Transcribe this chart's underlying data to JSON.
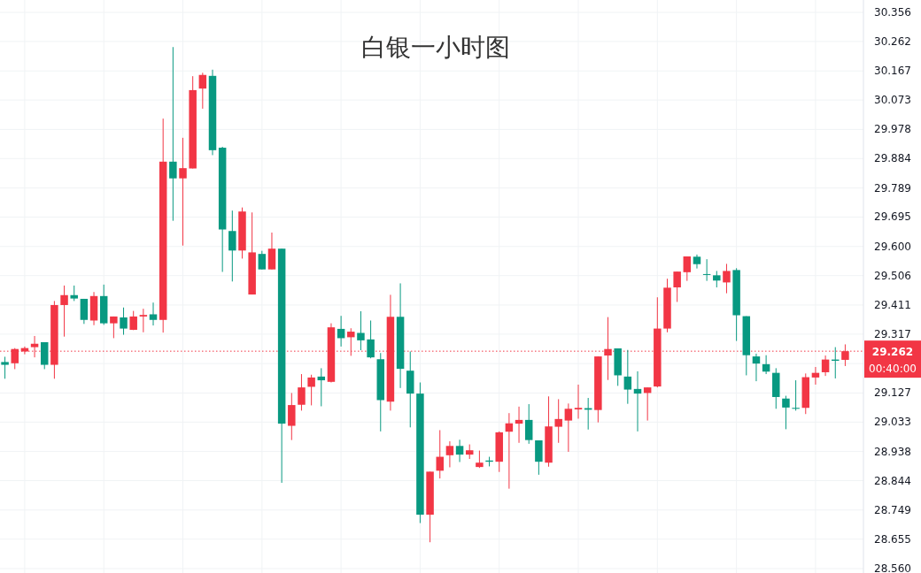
{
  "chart_data": {
    "type": "candlestick",
    "title": "白银一小时图",
    "categories": [
      null,
      null,
      null,
      null,
      null,
      null,
      null,
      null,
      null,
      null,
      null,
      null,
      null,
      null,
      null,
      null,
      null,
      null,
      null,
      null,
      null,
      null,
      null,
      null,
      null,
      null,
      null,
      null,
      null,
      null,
      null,
      null,
      null,
      null,
      null,
      null,
      null,
      null,
      null,
      null,
      null,
      null,
      null,
      null,
      null,
      null,
      null,
      null,
      null,
      null,
      null,
      null,
      null,
      null,
      null,
      null,
      null,
      null,
      null,
      null,
      null,
      null,
      null,
      null,
      null,
      null,
      null,
      null,
      null,
      null,
      null,
      null,
      null,
      null,
      null,
      null,
      null,
      null,
      null,
      null,
      null,
      null,
      null,
      null,
      null,
      null
    ],
    "ohlc": [
      [
        29.227,
        29.244,
        29.173,
        29.218
      ],
      [
        29.223,
        29.272,
        29.204,
        29.269
      ],
      [
        29.261,
        29.277,
        29.252,
        29.272
      ],
      [
        29.275,
        29.311,
        29.242,
        29.286
      ],
      [
        29.291,
        29.291,
        29.204,
        29.218
      ],
      [
        29.218,
        29.424,
        29.173,
        29.411
      ],
      [
        29.411,
        29.474,
        29.309,
        29.443
      ],
      [
        29.443,
        29.474,
        29.424,
        29.432
      ],
      [
        29.431,
        29.431,
        29.35,
        29.363
      ],
      [
        29.361,
        29.453,
        29.346,
        29.44
      ],
      [
        29.44,
        29.477,
        29.347,
        29.352
      ],
      [
        29.352,
        29.374,
        29.304,
        29.374
      ],
      [
        29.371,
        29.403,
        29.315,
        29.335
      ],
      [
        29.331,
        29.392,
        29.33,
        29.374
      ],
      [
        29.374,
        29.399,
        29.323,
        29.379
      ],
      [
        29.381,
        29.419,
        29.345,
        29.363
      ],
      [
        29.363,
        30.013,
        29.322,
        29.874
      ],
      [
        29.874,
        30.244,
        29.683,
        29.82
      ],
      [
        29.82,
        29.951,
        29.603,
        29.853
      ],
      [
        29.852,
        30.15,
        29.852,
        30.105
      ],
      [
        30.11,
        30.161,
        30.045,
        30.154
      ],
      [
        30.151,
        30.171,
        29.895,
        29.911
      ],
      [
        29.919,
        29.922,
        29.518,
        29.655
      ],
      [
        29.65,
        29.716,
        29.487,
        29.587
      ],
      [
        29.587,
        29.726,
        29.561,
        29.713
      ],
      [
        29.445,
        29.71,
        29.445,
        29.581
      ],
      [
        29.576,
        29.586,
        29.526,
        29.526
      ],
      [
        29.526,
        29.645,
        29.526,
        29.593
      ],
      [
        29.593,
        29.593,
        28.837,
        29.028
      ],
      [
        29.021,
        29.127,
        28.975,
        29.088
      ],
      [
        29.089,
        29.188,
        29.07,
        29.145
      ],
      [
        29.147,
        29.186,
        29.087,
        29.177
      ],
      [
        29.18,
        29.207,
        29.084,
        29.168
      ],
      [
        29.163,
        29.352,
        29.161,
        29.339
      ],
      [
        29.334,
        29.376,
        29.277,
        29.304
      ],
      [
        29.307,
        29.336,
        29.247,
        29.325
      ],
      [
        29.321,
        29.391,
        29.265,
        29.297
      ],
      [
        29.3,
        29.361,
        29.239,
        29.242
      ],
      [
        29.236,
        29.256,
        29.003,
        29.104
      ],
      [
        29.099,
        29.444,
        29.07,
        29.373
      ],
      [
        29.373,
        29.481,
        29.143,
        29.205
      ],
      [
        29.199,
        29.261,
        29.016,
        29.125
      ],
      [
        29.125,
        29.161,
        28.707,
        28.734
      ],
      [
        28.734,
        28.873,
        28.645,
        28.873
      ],
      [
        28.876,
        29.007,
        28.851,
        28.921
      ],
      [
        28.926,
        28.971,
        28.887,
        28.956
      ],
      [
        28.956,
        28.976,
        28.904,
        28.928
      ],
      [
        28.928,
        28.961,
        28.914,
        28.942
      ],
      [
        28.888,
        28.941,
        28.885,
        28.902
      ],
      [
        28.909,
        28.921,
        28.89,
        28.905
      ],
      [
        28.905,
        29.003,
        28.872,
        29.0
      ],
      [
        29.002,
        29.062,
        28.818,
        29.029
      ],
      [
        29.028,
        29.083,
        28.966,
        29.04
      ],
      [
        29.04,
        29.091,
        28.963,
        28.975
      ],
      [
        28.974,
        28.974,
        28.863,
        28.905
      ],
      [
        28.902,
        29.116,
        28.889,
        29.019
      ],
      [
        29.018,
        29.107,
        28.966,
        29.043
      ],
      [
        29.038,
        29.093,
        28.937,
        29.076
      ],
      [
        29.074,
        29.154,
        29.044,
        29.079
      ],
      [
        29.078,
        29.111,
        29.009,
        29.073
      ],
      [
        29.072,
        29.245,
        29.032,
        29.245
      ],
      [
        29.248,
        29.372,
        29.169,
        29.269
      ],
      [
        29.271,
        29.271,
        29.15,
        29.184
      ],
      [
        29.18,
        29.266,
        29.092,
        29.138
      ],
      [
        29.14,
        29.197,
        29.003,
        29.125
      ],
      [
        29.127,
        29.145,
        29.038,
        29.145
      ],
      [
        29.148,
        29.436,
        29.145,
        29.335
      ],
      [
        29.335,
        29.496,
        29.323,
        29.467
      ],
      [
        29.468,
        29.519,
        29.421,
        29.519
      ],
      [
        29.517,
        29.568,
        29.489,
        29.568
      ],
      [
        29.567,
        29.574,
        29.529,
        29.543
      ],
      [
        29.511,
        29.559,
        29.489,
        29.509
      ],
      [
        29.507,
        29.521,
        29.468,
        29.49
      ],
      [
        29.484,
        29.544,
        29.449,
        29.521
      ],
      [
        29.524,
        29.53,
        29.295,
        29.378
      ],
      [
        29.375,
        29.375,
        29.184,
        29.249
      ],
      [
        29.245,
        29.254,
        29.165,
        29.222
      ],
      [
        29.22,
        29.249,
        29.188,
        29.196
      ],
      [
        29.192,
        29.207,
        29.076,
        29.114
      ],
      [
        29.109,
        29.118,
        29.01,
        29.08
      ],
      [
        29.079,
        29.168,
        29.07,
        29.076
      ],
      [
        29.079,
        29.19,
        29.059,
        29.178
      ],
      [
        29.177,
        29.211,
        29.154,
        29.192
      ],
      [
        29.194,
        29.248,
        29.182,
        29.235
      ],
      [
        29.235,
        29.275,
        29.174,
        29.231
      ],
      [
        29.234,
        29.284,
        29.214,
        29.262
      ]
    ],
    "colors": [
      "#089981",
      "#f23645",
      "#f23645",
      "#f23645",
      "#089981",
      "#f23645",
      "#f23645",
      "#089981",
      "#089981",
      "#f23645",
      "#089981",
      "#f23645",
      "#089981",
      "#f23645",
      "#f23645",
      "#089981",
      "#f23645",
      "#089981",
      "#f23645",
      "#f23645",
      "#f23645",
      "#089981",
      "#089981",
      "#089981",
      "#f23645",
      "#f23645",
      "#089981",
      "#f23645",
      "#089981",
      "#f23645",
      "#f23645",
      "#f23645",
      "#089981",
      "#f23645",
      "#089981",
      "#f23645",
      "#089981",
      "#089981",
      "#089981",
      "#f23645",
      "#089981",
      "#089981",
      "#089981",
      "#f23645",
      "#f23645",
      "#f23645",
      "#089981",
      "#f23645",
      "#f23645",
      "#089981",
      "#f23645",
      "#f23645",
      "#f23645",
      "#089981",
      "#089981",
      "#f23645",
      "#f23645",
      "#f23645",
      "#f23645",
      "#089981",
      "#f23645",
      "#f23645",
      "#089981",
      "#089981",
      "#089981",
      "#f23645",
      "#f23645",
      "#f23645",
      "#f23645",
      "#f23645",
      "#089981",
      "#089981",
      "#089981",
      "#f23645",
      "#089981",
      "#089981",
      "#089981",
      "#089981",
      "#089981",
      "#089981",
      "#089981",
      "#f23645",
      "#f23645",
      "#f23645",
      "#089981",
      "#f23645"
    ],
    "ylim": [
      28.56,
      30.356
    ],
    "yticks": [
      {
        "value": 28.56,
        "label": "28.560"
      },
      28.655,
      28.749,
      28.844,
      28.938,
      29.033,
      29.127,
      {
        "value": 29.222,
        "label": null
      },
      29.317,
      29.411,
      29.506,
      {
        "value": 29.6,
        "label": "29.600"
      },
      29.695,
      29.789,
      29.884,
      29.978,
      30.073,
      30.167,
      30.262,
      30.356
    ],
    "ref_lines": [
      {
        "axis": "y",
        "value": 29.262,
        "label": "29.262",
        "color": "#f23645",
        "line_style": "dotted"
      }
    ],
    "annotations": [
      "00:40:00"
    ],
    "grid": true
  }
}
